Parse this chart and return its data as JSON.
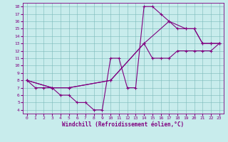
{
  "xlabel": "Windchill (Refroidissement éolien,°C)",
  "bg_color": "#c8ecec",
  "grid_color": "#7ab8b8",
  "line_color": "#800080",
  "xlim": [
    -0.5,
    23.5
  ],
  "ylim": [
    3.5,
    18.5
  ],
  "xticks": [
    0,
    1,
    2,
    3,
    4,
    5,
    6,
    7,
    8,
    9,
    10,
    11,
    12,
    13,
    14,
    15,
    16,
    17,
    18,
    19,
    20,
    21,
    22,
    23
  ],
  "yticks": [
    4,
    5,
    6,
    7,
    8,
    9,
    10,
    11,
    12,
    13,
    14,
    15,
    16,
    17,
    18
  ],
  "segments": [
    {
      "x": [
        0,
        1,
        2,
        3,
        4,
        5,
        6,
        7,
        8,
        9,
        10,
        11,
        12,
        13,
        14,
        15,
        16,
        17,
        18,
        19,
        20,
        21,
        22,
        23
      ],
      "y": [
        8,
        7,
        7,
        7,
        6,
        6,
        5,
        5,
        4,
        4,
        11,
        11,
        7,
        7,
        18,
        18,
        17,
        16,
        15,
        15,
        15,
        13,
        13,
        13
      ]
    },
    {
      "x": [
        0,
        3,
        5,
        10,
        14,
        17,
        19,
        20,
        21,
        22,
        23
      ],
      "y": [
        8,
        7,
        7,
        8,
        13,
        16,
        15,
        15,
        13,
        13,
        13
      ]
    },
    {
      "x": [
        0,
        3,
        5,
        10,
        14,
        15,
        16,
        17,
        18,
        19,
        20,
        21,
        22,
        23
      ],
      "y": [
        8,
        7,
        7,
        8,
        13,
        11,
        11,
        11,
        12,
        12,
        12,
        12,
        12,
        13
      ]
    }
  ]
}
